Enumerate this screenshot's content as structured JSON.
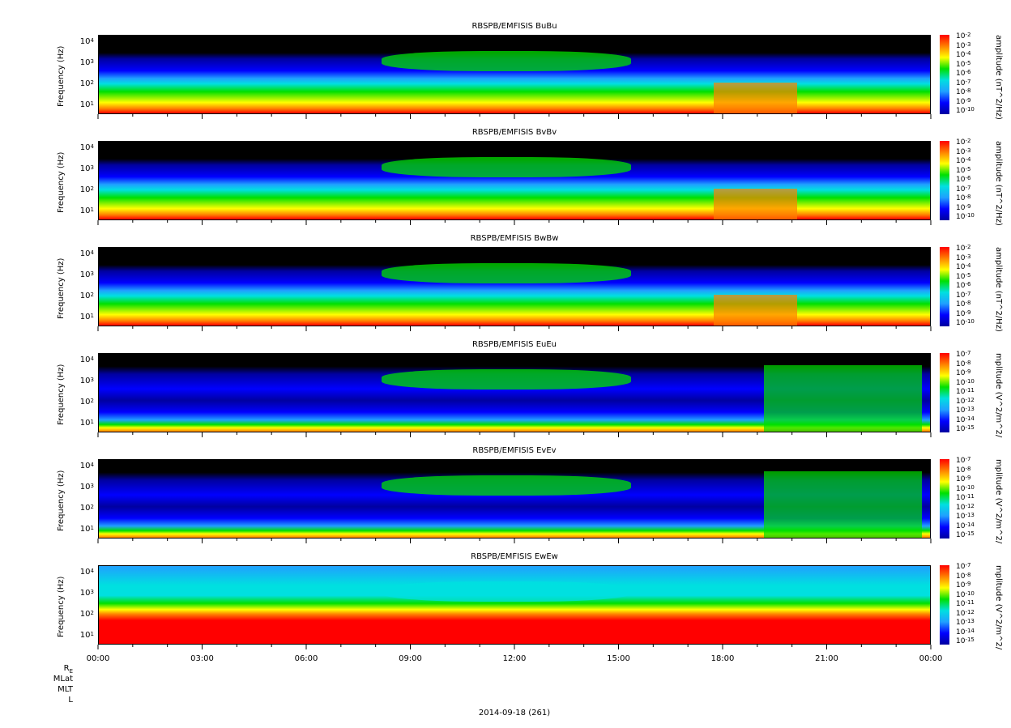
{
  "colors": {
    "black": "#000000",
    "navy": "#0000a0",
    "blue": "#0000ff",
    "light_blue": "#20a0ff",
    "cyan": "#00e0e0",
    "green": "#00e000",
    "yellow": "#ffff00",
    "orange": "#ff8000",
    "red": "#ff0000"
  },
  "x_axis": {
    "ticks": [
      "00:00",
      "03:00",
      "06:00",
      "09:00",
      "12:00",
      "15:00",
      "18:00",
      "21:00",
      "00:00"
    ],
    "ephemeris_labels": [
      "R",
      "MLat",
      "MLT",
      "L"
    ],
    "r_subscript": "E",
    "date": "2014-09-18 (261)"
  },
  "y_tick_exponents": [
    "4",
    "3",
    "2",
    "1"
  ],
  "chart_data": [
    {
      "type": "heatmap",
      "title": "RBSPB/EMFISIS  BuBu",
      "ylabel": "Frequency (Hz)",
      "ylim": [
        2,
        12000
      ],
      "yscale": "log",
      "zlabel": "amplitude (nT^2/Hz)",
      "zscale": "log",
      "ztick_exponents": [
        "-2",
        "-3",
        "-4",
        "-5",
        "-6",
        "-7",
        "-8",
        "-9",
        "-10"
      ],
      "xlim": [
        "00:00",
        "00:00"
      ]
    },
    {
      "type": "heatmap",
      "title": "RBSPB/EMFISIS  BvBv",
      "ylabel": "Frequency (Hz)",
      "ylim": [
        2,
        12000
      ],
      "yscale": "log",
      "zlabel": "amplitude (nT^2/Hz)",
      "zscale": "log",
      "ztick_exponents": [
        "-2",
        "-3",
        "-4",
        "-5",
        "-6",
        "-7",
        "-8",
        "-9",
        "-10"
      ],
      "xlim": [
        "00:00",
        "00:00"
      ]
    },
    {
      "type": "heatmap",
      "title": "RBSPB/EMFISIS  BwBw",
      "ylabel": "Frequency (Hz)",
      "ylim": [
        2,
        12000
      ],
      "yscale": "log",
      "zlabel": "amplitude (nT^2/Hz)",
      "zscale": "log",
      "ztick_exponents": [
        "-2",
        "-3",
        "-4",
        "-5",
        "-6",
        "-7",
        "-8",
        "-9",
        "-10"
      ],
      "xlim": [
        "00:00",
        "00:00"
      ]
    },
    {
      "type": "heatmap",
      "title": "RBSPB/EMFISIS  EuEu",
      "ylabel": "Frequency (Hz)",
      "ylim": [
        2,
        12000
      ],
      "yscale": "log",
      "zlabel": "mplitude (V^2/m^2/",
      "zscale": "log",
      "ztick_exponents": [
        "-7",
        "-8",
        "-9",
        "-10",
        "-11",
        "-12",
        "-13",
        "-14",
        "-15"
      ],
      "xlim": [
        "00:00",
        "00:00"
      ]
    },
    {
      "type": "heatmap",
      "title": "RBSPB/EMFISIS  EvEv",
      "ylabel": "Frequency (Hz)",
      "ylim": [
        2,
        12000
      ],
      "yscale": "log",
      "zlabel": "mplitude (V^2/m^2/",
      "zscale": "log",
      "ztick_exponents": [
        "-7",
        "-8",
        "-9",
        "-10",
        "-11",
        "-12",
        "-13",
        "-14",
        "-15"
      ],
      "xlim": [
        "00:00",
        "00:00"
      ]
    },
    {
      "type": "heatmap",
      "title": "RBSPB/EMFISIS  EwEw",
      "ylabel": "Frequency (Hz)",
      "ylim": [
        2,
        12000
      ],
      "yscale": "log",
      "zlabel": "mplitude (V^2/m^2/",
      "zscale": "log",
      "ztick_exponents": [
        "-7",
        "-8",
        "-9",
        "-10",
        "-11",
        "-12",
        "-13",
        "-14",
        "-15"
      ],
      "xlim": [
        "00:00",
        "00:00"
      ]
    }
  ]
}
